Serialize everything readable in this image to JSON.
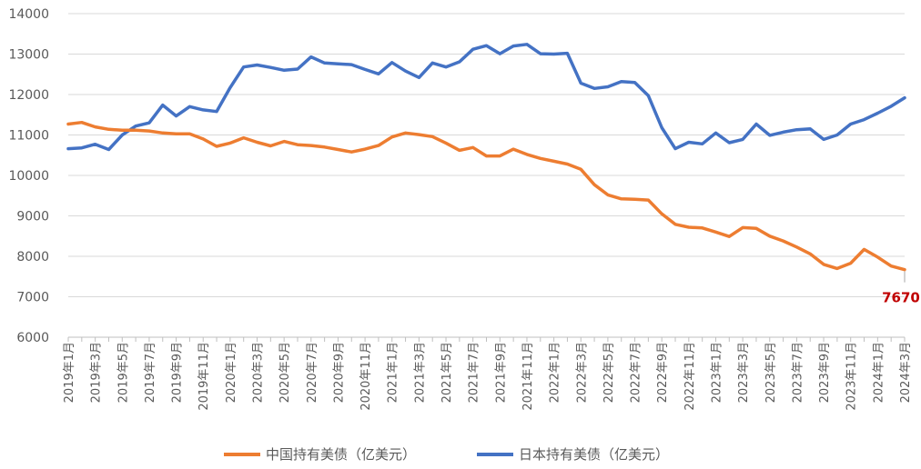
{
  "chart_data": {
    "type": "line",
    "title": "",
    "xlabel": "",
    "ylabel": "",
    "ylim": [
      6000,
      14000
    ],
    "yticks": [
      6000,
      7000,
      8000,
      9000,
      10000,
      11000,
      12000,
      13000,
      14000
    ],
    "ytick_labels": [
      "6000",
      "7000",
      "8000",
      "9000",
      "10000",
      "11000",
      "12000",
      "13000",
      "14000"
    ],
    "grid": "horizontal",
    "legend_position": "bottom",
    "x": [
      "2019年1月",
      "2019年2月",
      "2019年3月",
      "2019年4月",
      "2019年5月",
      "2019年6月",
      "2019年7月",
      "2019年8月",
      "2019年9月",
      "2019年10月",
      "2019年11月",
      "2019年12月",
      "2020年1月",
      "2020年2月",
      "2020年3月",
      "2020年4月",
      "2020年5月",
      "2020年6月",
      "2020年7月",
      "2020年8月",
      "2020年9月",
      "2020年10月",
      "2020年11月",
      "2020年12月",
      "2021年1月",
      "2021年2月",
      "2021年3月",
      "2021年4月",
      "2021年5月",
      "2021年6月",
      "2021年7月",
      "2021年8月",
      "2021年9月",
      "2021年10月",
      "2021年11月",
      "2021年12月",
      "2022年1月",
      "2022年2月",
      "2022年3月",
      "2022年4月",
      "2022年5月",
      "2022年6月",
      "2022年7月",
      "2022年8月",
      "2022年9月",
      "2022年10月",
      "2022年11月",
      "2022年12月",
      "2023年1月",
      "2023年2月",
      "2023年3月",
      "2023年4月",
      "2023年5月",
      "2023年6月",
      "2023年7月",
      "2023年8月",
      "2023年9月",
      "2023年10月",
      "2023年11月",
      "2023年12月",
      "2024年1月",
      "2024年2月",
      "2024年3月"
    ],
    "xtick_labels": [
      "2019年1月",
      "2019年3月",
      "2019年5月",
      "2019年7月",
      "2019年9月",
      "2019年11月",
      "2020年1月",
      "2020年3月",
      "2020年5月",
      "2020年7月",
      "2020年9月",
      "2020年11月",
      "2021年1月",
      "2021年3月",
      "2021年5月",
      "2021年7月",
      "2021年9月",
      "2021年11月",
      "2022年1月",
      "2022年3月",
      "2022年5月",
      "2022年7月",
      "2022年9月",
      "2022年11月",
      "2023年1月",
      "2023年3月",
      "2023年5月",
      "2023年7月",
      "2023年9月",
      "2023年11月",
      "2024年1月",
      "2024年3月"
    ],
    "series": [
      {
        "name": "中国持有美债（亿美元）",
        "color": "#ED7D31",
        "values": [
          11270,
          11310,
          11200,
          11140,
          11120,
          11120,
          11100,
          11050,
          11030,
          11030,
          10900,
          10720,
          10800,
          10930,
          10820,
          10730,
          10840,
          10760,
          10740,
          10700,
          10640,
          10580,
          10650,
          10740,
          10950,
          11050,
          11010,
          10960,
          10800,
          10620,
          10690,
          10480,
          10480,
          10650,
          10520,
          10420,
          10350,
          10280,
          10150,
          9770,
          9520,
          9420,
          9410,
          9390,
          9050,
          8790,
          8720,
          8700,
          8600,
          8490,
          8710,
          8690,
          8500,
          8380,
          8230,
          8060,
          7800,
          7700,
          7830,
          8170,
          7980,
          7760,
          7670
        ]
      },
      {
        "name": "日本持有美债（亿美元）",
        "color": "#4472C4",
        "values": [
          10660,
          10680,
          10770,
          10640,
          11000,
          11220,
          11300,
          11740,
          11470,
          11700,
          11620,
          11580,
          12170,
          12680,
          12730,
          12670,
          12600,
          12630,
          12930,
          12780,
          12760,
          12740,
          12620,
          12510,
          12790,
          12580,
          12420,
          12780,
          12680,
          12810,
          13120,
          13210,
          13010,
          13200,
          13240,
          13010,
          13000,
          13020,
          12280,
          12150,
          12190,
          12320,
          12300,
          11970,
          11180,
          10660,
          10820,
          10780,
          11050,
          10810,
          10890,
          11270,
          10990,
          11070,
          11130,
          11150,
          10890,
          11000,
          11270,
          11380,
          11540,
          11710,
          11920
        ]
      }
    ],
    "annotation": {
      "series": 0,
      "index": 62,
      "label": "7670",
      "color": "#C00000"
    }
  }
}
